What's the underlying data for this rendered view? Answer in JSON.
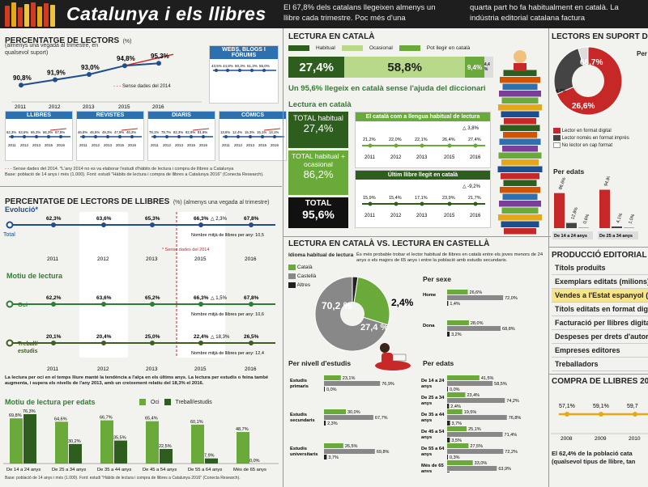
{
  "header": {
    "title": "Catalunya i els llibres",
    "text1": "El 67,8% dels catalans llegeixen almenys un llibre cada trimestre. Poc més d'una",
    "text2": "quarta part ho fa habitualment en català. La indústria editorial catalana factura"
  },
  "col1": {
    "title": "PERCENTATGE DE LECTORS",
    "title_suffix": "(%)",
    "subtitle": "(almenys una vegada al trimestre, en qualsevol suport)",
    "series_note": "Sense dades del 2014",
    "web_title": "WEBS, BLOGS I FÒRUMS",
    "web_values": [
      "43,5%",
      "44,8%",
      "50,3%",
      "51,3%",
      "55,0%"
    ],
    "mini": [
      {
        "title": "LLIBRES",
        "values": [
          "62,3%",
          "63,6%",
          "65,3%",
          "66,3%",
          "67,8%"
        ]
      },
      {
        "title": "REVISTES",
        "values": [
          "46,8%",
          "45,5%",
          "49,3%",
          "47,9%",
          "46,3%"
        ]
      },
      {
        "title": "DIARIS",
        "values": [
          "78,1%",
          "79,7%",
          "82,3%",
          "82,9%",
          "81,9%"
        ]
      },
      {
        "title": "CÒMICS",
        "values": [
          "13,6%",
          "12,4%",
          "15,3%",
          "15,1%",
          "14,1%"
        ]
      }
    ],
    "legend_note": "Sense dades del 2014. *L'any 2014 no es va elaborar l'estudi d'hàbits de lectura i compra de llibres a Catalunya",
    "source_note": "Base: població de 14 anys i més (1.000). Font: estudi \"Hàbits de lectura i compra de llibres a Catalunya 2016\" (Conecta Research)."
  },
  "col1b": {
    "title": "PERCENTATGE DE LECTORS DE LLIBRES",
    "title_suffix": "(%) (almenys una vegada al trimestre)",
    "evolucio": "Evolució*",
    "total_label": "Total",
    "total_values": [
      "62,3%",
      "63,6%",
      "65,3%",
      "66,3%",
      "67,8%"
    ],
    "total_delta": "2,3%",
    "total_books": "Nombre mitjà de llibres per any: 10,5",
    "sense_note": "* Sense dades del 2014",
    "motiu": "Motiu de lectura",
    "oci_label": "Oci",
    "oci_values": [
      "62,2%",
      "63,6%",
      "65,2%",
      "66,3%",
      "67,8%"
    ],
    "oci_delta": "1,5%",
    "oci_books": "Nombre mitjà de llibres per any: 10,6",
    "treball_label": "Treball/ estudis",
    "treball_values": [
      "20,1%",
      "20,4%",
      "25,0%",
      "22,4%",
      "26,5%"
    ],
    "treball_delta": "18,3%",
    "treball_books": "Nombre mitjà de llibres per any: 12,4",
    "note": "La lectura per oci en el temps lliure manté la tendència a l'alça en els últims anys. La lectura per estudis o feina també augmenta, i supera els nivells de l'any 2013, amb un creixement relatiu del 18,3% el 2016.",
    "edat_title": "Motiu de lectura per edats",
    "legend_oci": "Oci",
    "legend_treball": "Treball/estudis",
    "source": "Base: població de 14 anys i més (1.000). Font: estudi \"Hàbits de lectura i compra de llibres a Catalunya 2016\" (Conecta Research)."
  },
  "col2": {
    "title": "LECTURA EN CATALÀ",
    "leg_hab": "Habitual",
    "leg_oca": "Ocasional",
    "leg_pot": "Pot llegir en català",
    "v_hab": "27,4%",
    "v_oca": "58,8%",
    "v_pot": "9,4%",
    "v_rest": "4,4 %",
    "headline": "Un 95,6% llegeix en català sense l'ajuda del diccionari",
    "sub_title": "Lectura en català",
    "b1_label": "TOTAL habitual",
    "b1_value": "27,4%",
    "b2_label": "TOTAL habitual + ocasional",
    "b2_value": "86,2%",
    "b3_label": "TOTAL",
    "b3_value": "95,6%",
    "c1_title": "El català com a llengua habitual de lectura",
    "c1_delta": "3,8%",
    "c1_values": [
      "21,2%",
      "22,0%",
      "22,1%",
      "26,4%",
      "27,4%"
    ],
    "c2_title": "Últim llibre llegit en català",
    "c2_delta": "-9,2%",
    "c2_values": [
      "15,9%",
      "15,4%",
      "17,1%",
      "23,9%",
      "21,7%"
    ],
    "vs_title": "LECTURA EN CATALÀ VS. LECTURA EN CASTELLÀ",
    "idioma": "Idioma habitual de lectura",
    "leg_cat": "Català",
    "leg_cas": "Castellà",
    "leg_alt": "Altres",
    "vs_note": "És més probable trobar el lector habitual de llibres en català entre els joves menors de 24 anys o els majors de 65 anys i entre la població amb estudis secundaris.",
    "pie_cas": "70,2 %",
    "pie_cat": "27,4 %",
    "pie_alt": "2,4%",
    "sexe_title": "Per sexe",
    "sexe": [
      {
        "label": "Home",
        "cat": "26,6%",
        "cas": "72,0%",
        "alt": "1,4%"
      },
      {
        "label": "Dona",
        "cat": "28,0%",
        "cas": "68,8%",
        "alt": "3,2%"
      }
    ],
    "estudis_title": "Per nivell d'estudis",
    "estudis": [
      {
        "label": "Estudis primaris",
        "cat": "23,1%",
        "cas": "76,9%",
        "alt": "0,0%"
      },
      {
        "label": "Estudis secundaris",
        "cat": "30,0%",
        "cas": "67,7%",
        "alt": "2,3%"
      },
      {
        "label": "Estudis universitaris",
        "cat": "26,5%",
        "cas": "69,8%",
        "alt": "3,7%"
      }
    ],
    "edats_title": "Per edats",
    "edats": [
      {
        "label": "De 14 a 24 anys",
        "cat": "41,5%",
        "cas": "58,5%",
        "alt": "0,0%"
      },
      {
        "label": "De 25 a 34 anys",
        "cat": "23,4%",
        "cas": "74,2%",
        "alt": "2,4%"
      },
      {
        "label": "De 35 a 44 anys",
        "cat": "19,5%",
        "cas": "76,8%",
        "alt": "3,7%"
      },
      {
        "label": "De 45 a 54 anys",
        "cat": "25,1%",
        "cas": "71,4%",
        "alt": "3,5%"
      },
      {
        "label": "De 55 a 64 anys",
        "cat": "27,5%",
        "cas": "72,2%",
        "alt": "0,3%"
      },
      {
        "label": "Més de 65 anys",
        "cat": "33,0%",
        "cas": "63,9%",
        "alt": "3,1%"
      }
    ]
  },
  "col3": {
    "title": "LECTORS EN SUPORT DIGIT",
    "pie_big": "68,7%",
    "pie_mid": "26,6%",
    "pie_small": "4,7%",
    "per_label": "Per",
    "leg1": "Lector en format digital",
    "leg2": "Lector només en format imprès",
    "leg3": "No lector en cap format",
    "per_edats": "Per edats",
    "bars": [
      {
        "label": "De 14 a 24 anys",
        "v": [
          "86,6%",
          "12,8%",
          "0,6%"
        ]
      },
      {
        "label": "De 25 a 34 anys",
        "v": [
          "94,9%",
          "4,1%",
          "1,0%"
        ]
      }
    ],
    "prod_title": "PRODUCCIÓ EDITORIAL A CATA",
    "prod_items": [
      "Títols produïts",
      "Exemplars editats (milions)",
      "Vendes a l'Estat espanyol (",
      "Títols editats en format digi",
      "Facturació per llibres digita",
      "Despeses per drets d'autor",
      "Empreses editores",
      "Treballadors"
    ],
    "compra_title": "COMPRA DE LLIBRES 2008-",
    "compra_values": [
      "57,1%",
      "59,1%",
      "59,7"
    ],
    "compra_years": [
      "2008",
      "2009",
      "2010"
    ],
    "footer_note": "El 62,4% de la població cata (qualsevol tipus de llibre, tan"
  },
  "chart_data": [
    {
      "type": "line",
      "title": "PERCENTATGE DE LECTORS",
      "x": [
        "2011",
        "2012",
        "2013",
        "2015",
        "2016"
      ],
      "series": [
        {
          "values": [
            90.8,
            91.9,
            93.0,
            94.8,
            95.3
          ]
        }
      ],
      "ylim": [
        85,
        100
      ]
    },
    {
      "type": "line",
      "title": "PERCENTATGE DE LECTORS DE LLIBRES",
      "x": [
        "2011",
        "2012",
        "2013",
        "2015",
        "2016"
      ],
      "series": [
        {
          "name": "Total",
          "values": [
            62.3,
            63.6,
            65.3,
            66.3,
            67.8
          ]
        },
        {
          "name": "Oci",
          "values": [
            62.2,
            63.6,
            65.2,
            66.3,
            67.8
          ]
        },
        {
          "name": "Treball/ estudis",
          "values": [
            20.1,
            20.4,
            25.0,
            22.4,
            26.5
          ]
        }
      ]
    },
    {
      "type": "bar",
      "title": "Motiu de lectura per edats",
      "categories": [
        "De 14 a 24 anys",
        "De 25 a 34 anys",
        "De 35 a 44 anys",
        "De 45 a 54 anys",
        "De 55 a 64 anys",
        "Més de 65 anys"
      ],
      "series": [
        {
          "name": "Oci",
          "values": [
            69.8,
            64.6,
            66.7,
            65.4,
            60.1,
            48.7
          ]
        },
        {
          "name": "Treball/estudis",
          "values": [
            76.3,
            30.2,
            35.5,
            22.5,
            7.9,
            0.0
          ]
        }
      ],
      "ylim": [
        0,
        80
      ]
    },
    {
      "type": "pie",
      "title": "Idioma habitual de lectura",
      "categories": [
        "Castellà",
        "Català",
        "Altres"
      ],
      "values": [
        70.2,
        27.4,
        2.4
      ]
    },
    {
      "type": "pie",
      "title": "LECTORS EN SUPORT DIGIT",
      "categories": [
        "Lector en format digital",
        "Lector només en format imprès",
        "No lector en cap format"
      ],
      "values": [
        68.7,
        26.6,
        4.7
      ]
    },
    {
      "type": "bar",
      "title": "Motiu de lectura per edats",
      "categories": [
        "De 14 a 24 anys",
        "De 25 a 34 anys"
      ],
      "series": [
        {
          "values": [
            86.6,
            94.9
          ]
        }
      ]
    }
  ],
  "years": [
    "2011",
    "2012",
    "2013",
    "2015",
    "2016"
  ],
  "colors": {
    "red": "#c62828",
    "blue": "#2e6fb0",
    "dark_green": "#2e5e1e",
    "green": "#6aaa3a",
    "light_green": "#b8d98a",
    "gray": "#888888"
  }
}
